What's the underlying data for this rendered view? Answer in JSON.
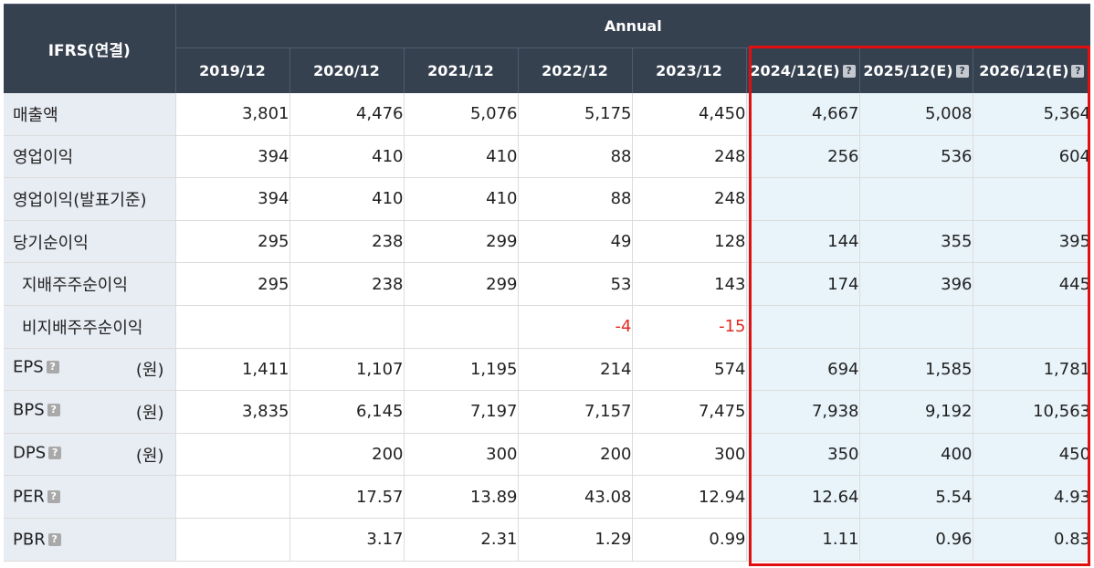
{
  "header": {
    "corner_label": "IFRS(연결)",
    "period_label": "Annual",
    "help_glyph": "?",
    "columns": [
      "2019/12",
      "2020/12",
      "2021/12",
      "2022/12",
      "2023/12",
      "2024/12(E)",
      "2025/12(E)",
      "2026/12(E)"
    ]
  },
  "rows": [
    {
      "label": "매출액",
      "values": [
        "3,801",
        "4,476",
        "5,076",
        "5,175",
        "4,450",
        "4,667",
        "5,008",
        "5,364"
      ]
    },
    {
      "label": "영업이익",
      "values": [
        "394",
        "410",
        "410",
        "88",
        "248",
        "256",
        "536",
        "604"
      ]
    },
    {
      "label": "영업이익(발표기준)",
      "values": [
        "394",
        "410",
        "410",
        "88",
        "248",
        "",
        "",
        ""
      ]
    },
    {
      "label": "당기순이익",
      "values": [
        "295",
        "238",
        "299",
        "49",
        "128",
        "144",
        "355",
        "395"
      ]
    },
    {
      "label": "지배주주순이익",
      "values": [
        "295",
        "238",
        "299",
        "53",
        "143",
        "174",
        "396",
        "445"
      ]
    },
    {
      "label": "비지배주주순이익",
      "values": [
        "",
        "",
        "",
        "-4",
        "-15",
        "",
        "",
        ""
      ]
    },
    {
      "label": "EPS",
      "unit": "(원)",
      "values": [
        "1,411",
        "1,107",
        "1,195",
        "214",
        "574",
        "694",
        "1,585",
        "1,781"
      ]
    },
    {
      "label": "BPS",
      "unit": "(원)",
      "values": [
        "3,835",
        "6,145",
        "7,197",
        "7,157",
        "7,475",
        "7,938",
        "9,192",
        "10,563"
      ]
    },
    {
      "label": "DPS",
      "unit": "(원)",
      "values": [
        "",
        "200",
        "300",
        "200",
        "300",
        "350",
        "400",
        "450"
      ]
    },
    {
      "label": "PER",
      "values": [
        "",
        "17.57",
        "13.89",
        "43.08",
        "12.94",
        "12.64",
        "5.54",
        "4.93"
      ]
    },
    {
      "label": "PBR",
      "values": [
        "",
        "3.17",
        "2.31",
        "1.29",
        "0.99",
        "1.11",
        "0.96",
        "0.83"
      ]
    }
  ],
  "colors": {
    "header_bg": "#364150",
    "label_bg": "#e8ecf3",
    "estimate_bg": "#e8f4fa",
    "negative_text": "#e02a1f",
    "highlight_border": "#e01010"
  }
}
